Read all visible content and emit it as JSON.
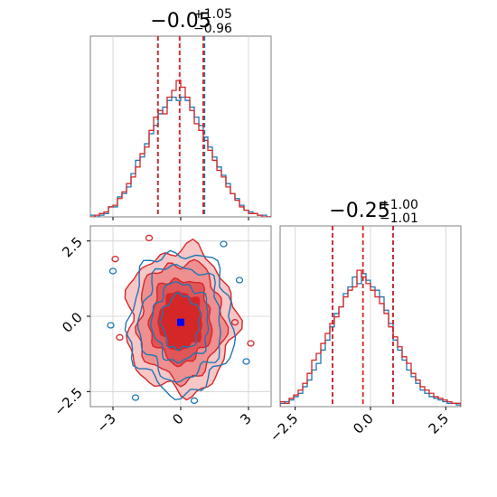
{
  "chart_data": [
    {
      "type": "histogram",
      "panel": "x-marginal",
      "title": {
        "median": "−0.05",
        "plus": "+1.05",
        "minus": "−0.96"
      },
      "xlim": [
        -4,
        4
      ],
      "xticks": [
        -3,
        0,
        3
      ],
      "ylim": [
        0,
        1
      ],
      "grid": true,
      "bins": [
        -4.0,
        -3.8,
        -3.6,
        -3.4,
        -3.2,
        -3.0,
        -2.8,
        -2.6,
        -2.4,
        -2.2,
        -2.0,
        -1.8,
        -1.6,
        -1.4,
        -1.2,
        -1.0,
        -0.8,
        -0.6,
        -0.4,
        -0.2,
        0.0,
        0.2,
        0.4,
        0.6,
        0.8,
        1.0,
        1.2,
        1.4,
        1.6,
        1.8,
        2.0,
        2.2,
        2.4,
        2.6,
        2.8,
        3.0,
        3.2,
        3.4,
        3.6,
        3.8,
        4.0
      ],
      "series": [
        {
          "color": "#1f77b4",
          "values": [
            0.01,
            0.0,
            0.01,
            0.02,
            0.06,
            0.06,
            0.12,
            0.14,
            0.18,
            0.26,
            0.34,
            0.36,
            0.44,
            0.5,
            0.55,
            0.62,
            0.66,
            0.7,
            0.72,
            0.7,
            0.72,
            0.7,
            0.66,
            0.6,
            0.55,
            0.48,
            0.42,
            0.36,
            0.3,
            0.25,
            0.2,
            0.14,
            0.11,
            0.07,
            0.04,
            0.03,
            0.02,
            0.01,
            0.01,
            0.0
          ]
        },
        {
          "color": "#d62728",
          "values": [
            0.0,
            0.01,
            0.02,
            0.03,
            0.06,
            0.07,
            0.11,
            0.15,
            0.2,
            0.24,
            0.3,
            0.38,
            0.42,
            0.52,
            0.6,
            0.64,
            0.62,
            0.72,
            0.76,
            0.82,
            0.78,
            0.72,
            0.64,
            0.56,
            0.52,
            0.46,
            0.4,
            0.34,
            0.28,
            0.24,
            0.18,
            0.14,
            0.1,
            0.06,
            0.04,
            0.02,
            0.02,
            0.01,
            0.0,
            0.0
          ]
        }
      ],
      "quantile_lines": [
        {
          "color": "#1f77b4",
          "x": [
            -1.01,
            1.0,
            1.05
          ]
        },
        {
          "color": "#d62728",
          "x": [
            -1.01,
            -0.05,
            1.0
          ]
        }
      ]
    },
    {
      "type": "contour",
      "panel": "joint",
      "xlim": [
        -4,
        4
      ],
      "ylim": [
        -3,
        3
      ],
      "xticks": [
        -3,
        0,
        3
      ],
      "yticks": [
        -2.5,
        0.0,
        2.5
      ],
      "grid": true,
      "center_marker": {
        "x": 0.0,
        "y": -0.2,
        "color": "#0000ff"
      },
      "series": [
        {
          "color": "#1f77b4",
          "filled": false,
          "levels": [
            {
              "rx": 2.3,
              "ry": 2.35
            },
            {
              "rx": 1.8,
              "ry": 1.9
            },
            {
              "rx": 1.25,
              "ry": 1.3
            },
            {
              "rx": 0.85,
              "ry": 0.9
            }
          ]
        },
        {
          "color": "#d62728",
          "filled": true,
          "levels": [
            {
              "rx": 2.4,
              "ry": 2.4
            },
            {
              "rx": 1.9,
              "ry": 1.95
            },
            {
              "rx": 1.35,
              "ry": 1.4
            },
            {
              "rx": 0.95,
              "ry": 0.95
            }
          ]
        }
      ]
    },
    {
      "type": "histogram",
      "panel": "y-marginal",
      "title": {
        "median": "−0.25",
        "plus": "+1.00",
        "minus": "−1.01"
      },
      "xlim": [
        -3,
        3
      ],
      "xticks": [
        -2.5,
        0.0,
        2.5
      ],
      "ylim": [
        0,
        1
      ],
      "grid": true,
      "bins": [
        -3.0,
        -2.85,
        -2.7,
        -2.55,
        -2.4,
        -2.25,
        -2.1,
        -1.95,
        -1.8,
        -1.65,
        -1.5,
        -1.35,
        -1.2,
        -1.05,
        -0.9,
        -0.75,
        -0.6,
        -0.45,
        -0.3,
        -0.15,
        0.0,
        0.15,
        0.3,
        0.45,
        0.6,
        0.75,
        0.9,
        1.05,
        1.2,
        1.35,
        1.5,
        1.65,
        1.8,
        1.95,
        2.1,
        2.25,
        2.4,
        2.55,
        2.7,
        2.85,
        3.0
      ],
      "series": [
        {
          "color": "#1f77b4",
          "values": [
            0.02,
            0.03,
            0.04,
            0.06,
            0.08,
            0.12,
            0.16,
            0.22,
            0.26,
            0.34,
            0.4,
            0.48,
            0.56,
            0.6,
            0.68,
            0.72,
            0.78,
            0.74,
            0.8,
            0.76,
            0.72,
            0.7,
            0.66,
            0.58,
            0.5,
            0.4,
            0.34,
            0.28,
            0.22,
            0.18,
            0.14,
            0.1,
            0.08,
            0.06,
            0.05,
            0.04,
            0.03,
            0.02,
            0.02,
            0.01
          ]
        },
        {
          "color": "#d62728",
          "values": [
            0.03,
            0.02,
            0.05,
            0.07,
            0.1,
            0.14,
            0.2,
            0.28,
            0.32,
            0.38,
            0.44,
            0.5,
            0.54,
            0.6,
            0.66,
            0.7,
            0.72,
            0.82,
            0.78,
            0.74,
            0.7,
            0.66,
            0.62,
            0.56,
            0.48,
            0.42,
            0.36,
            0.3,
            0.26,
            0.2,
            0.16,
            0.12,
            0.1,
            0.08,
            0.06,
            0.05,
            0.04,
            0.03,
            0.02,
            0.02
          ]
        }
      ],
      "quantile_lines": [
        {
          "color": "#1f77b4",
          "x": [
            -1.26,
            0.75
          ]
        },
        {
          "color": "#d62728",
          "x": [
            -1.26,
            -0.25,
            0.75
          ]
        }
      ]
    }
  ]
}
